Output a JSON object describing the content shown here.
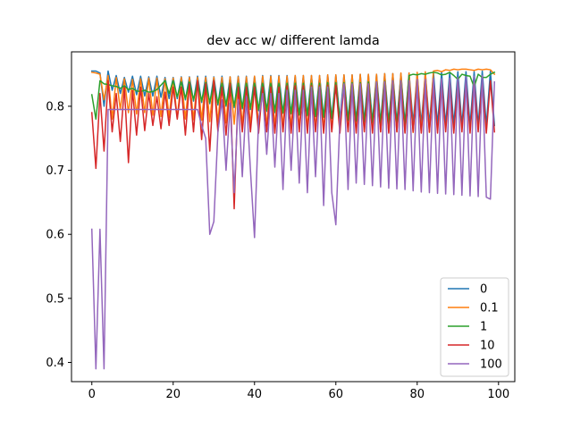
{
  "chart_data": {
    "type": "line",
    "title": "dev acc w/ different lamda",
    "xlabel": "",
    "ylabel": "",
    "xlim": [
      -5,
      104
    ],
    "ylim": [
      0.37,
      0.885
    ],
    "xticks": [
      0,
      20,
      40,
      60,
      80,
      100
    ],
    "yticks": [
      0.4,
      0.5,
      0.6,
      0.7,
      0.8
    ],
    "grid": false,
    "legend_position": "lower-right",
    "series": [
      {
        "name": "0",
        "color": "#1f77b4",
        "x": [
          0,
          1,
          2,
          3,
          4,
          5,
          6,
          7,
          8,
          9,
          10,
          11,
          12,
          13,
          14,
          15,
          16,
          17,
          18,
          19,
          20,
          21,
          22,
          23,
          24,
          25,
          26,
          27,
          28,
          29,
          30,
          31,
          32,
          33,
          34,
          35,
          36,
          37,
          38,
          39,
          40,
          41,
          42,
          43,
          44,
          45,
          46,
          47,
          48,
          49,
          50,
          51,
          52,
          53,
          54,
          55,
          56,
          57,
          58,
          59,
          60,
          61,
          62,
          63,
          64,
          65,
          66,
          67,
          68,
          69,
          70,
          71,
          72,
          73,
          74,
          75,
          76,
          77,
          78,
          79,
          80,
          81,
          82,
          83,
          84,
          85,
          86,
          87,
          88,
          89,
          90,
          91,
          92,
          93,
          94,
          95,
          96,
          97,
          98,
          99
        ],
        "values": [
          0.855,
          0.855,
          0.852,
          0.8,
          0.855,
          0.825,
          0.848,
          0.82,
          0.845,
          0.822,
          0.847,
          0.818,
          0.847,
          0.816,
          0.846,
          0.816,
          0.847,
          0.814,
          0.845,
          0.812,
          0.845,
          0.812,
          0.846,
          0.81,
          0.846,
          0.808,
          0.847,
          0.806,
          0.847,
          0.804,
          0.846,
          0.802,
          0.847,
          0.8,
          0.846,
          0.798,
          0.847,
          0.796,
          0.847,
          0.795,
          0.847,
          0.793,
          0.848,
          0.792,
          0.848,
          0.79,
          0.848,
          0.789,
          0.848,
          0.788,
          0.848,
          0.786,
          0.848,
          0.785,
          0.848,
          0.784,
          0.848,
          0.783,
          0.849,
          0.781,
          0.849,
          0.78,
          0.849,
          0.779,
          0.849,
          0.778,
          0.85,
          0.777,
          0.85,
          0.776,
          0.85,
          0.775,
          0.851,
          0.775,
          0.851,
          0.774,
          0.851,
          0.773,
          0.852,
          0.773,
          0.852,
          0.772,
          0.852,
          0.772,
          0.853,
          0.771,
          0.853,
          0.771,
          0.853,
          0.771,
          0.854,
          0.77,
          0.854,
          0.77,
          0.854,
          0.77,
          0.855,
          0.77,
          0.855,
          0.77
        ]
      },
      {
        "name": "0.1",
        "color": "#ff7f0e",
        "x": [
          0,
          1,
          2,
          3,
          4,
          5,
          6,
          7,
          8,
          9,
          10,
          11,
          12,
          13,
          14,
          15,
          16,
          17,
          18,
          19,
          20,
          21,
          22,
          23,
          24,
          25,
          26,
          27,
          28,
          29,
          30,
          31,
          32,
          33,
          34,
          35,
          36,
          37,
          38,
          39,
          40,
          41,
          42,
          43,
          44,
          45,
          46,
          47,
          48,
          49,
          50,
          51,
          52,
          53,
          54,
          55,
          56,
          57,
          58,
          59,
          60,
          61,
          62,
          63,
          64,
          65,
          66,
          67,
          68,
          69,
          70,
          71,
          72,
          73,
          74,
          75,
          76,
          77,
          78,
          79,
          80,
          81,
          82,
          83,
          84,
          85,
          86,
          87,
          88,
          89,
          90,
          91,
          92,
          93,
          94,
          95,
          96,
          97,
          98,
          99
        ],
        "values": [
          0.853,
          0.852,
          0.85,
          0.81,
          0.848,
          0.78,
          0.845,
          0.795,
          0.843,
          0.79,
          0.842,
          0.788,
          0.843,
          0.79,
          0.844,
          0.786,
          0.844,
          0.784,
          0.843,
          0.782,
          0.844,
          0.781,
          0.845,
          0.78,
          0.845,
          0.779,
          0.845,
          0.778,
          0.845,
          0.776,
          0.845,
          0.775,
          0.845,
          0.774,
          0.846,
          0.772,
          0.846,
          0.771,
          0.846,
          0.77,
          0.847,
          0.769,
          0.847,
          0.768,
          0.847,
          0.768,
          0.847,
          0.767,
          0.847,
          0.766,
          0.848,
          0.765,
          0.848,
          0.765,
          0.848,
          0.764,
          0.848,
          0.763,
          0.849,
          0.763,
          0.849,
          0.762,
          0.849,
          0.762,
          0.849,
          0.761,
          0.85,
          0.761,
          0.85,
          0.761,
          0.85,
          0.76,
          0.851,
          0.76,
          0.851,
          0.76,
          0.852,
          0.759,
          0.852,
          0.759,
          0.853,
          0.759,
          0.854,
          0.759,
          0.855,
          0.856,
          0.854,
          0.857,
          0.856,
          0.858,
          0.857,
          0.858,
          0.858,
          0.857,
          0.856,
          0.858,
          0.857,
          0.858,
          0.857,
          0.85
        ]
      },
      {
        "name": "1",
        "color": "#2ca02c",
        "x": [
          0,
          1,
          2,
          3,
          4,
          5,
          6,
          7,
          8,
          9,
          10,
          11,
          12,
          13,
          14,
          15,
          16,
          17,
          18,
          19,
          20,
          21,
          22,
          23,
          24,
          25,
          26,
          27,
          28,
          29,
          30,
          31,
          32,
          33,
          34,
          35,
          36,
          37,
          38,
          39,
          40,
          41,
          42,
          43,
          44,
          45,
          46,
          47,
          48,
          49,
          50,
          51,
          52,
          53,
          54,
          55,
          56,
          57,
          58,
          59,
          60,
          61,
          62,
          63,
          64,
          65,
          66,
          67,
          68,
          69,
          70,
          71,
          72,
          73,
          74,
          75,
          76,
          77,
          78,
          79,
          80,
          81,
          82,
          83,
          84,
          85,
          86,
          87,
          88,
          89,
          90,
          91,
          92,
          93,
          94,
          95,
          96,
          97,
          98,
          99
        ],
        "values": [
          0.818,
          0.78,
          0.84,
          0.835,
          0.834,
          0.832,
          0.831,
          0.828,
          0.832,
          0.826,
          0.828,
          0.824,
          0.823,
          0.825,
          0.822,
          0.823,
          0.826,
          0.833,
          0.84,
          0.82,
          0.84,
          0.815,
          0.838,
          0.812,
          0.838,
          0.81,
          0.837,
          0.808,
          0.837,
          0.806,
          0.836,
          0.804,
          0.836,
          0.802,
          0.836,
          0.8,
          0.836,
          0.798,
          0.836,
          0.797,
          0.836,
          0.795,
          0.836,
          0.794,
          0.836,
          0.792,
          0.836,
          0.79,
          0.836,
          0.789,
          0.836,
          0.787,
          0.836,
          0.786,
          0.836,
          0.784,
          0.836,
          0.783,
          0.837,
          0.781,
          0.837,
          0.78,
          0.837,
          0.778,
          0.837,
          0.777,
          0.837,
          0.776,
          0.838,
          0.775,
          0.838,
          0.774,
          0.839,
          0.773,
          0.839,
          0.772,
          0.84,
          0.771,
          0.848,
          0.85,
          0.849,
          0.851,
          0.85,
          0.852,
          0.853,
          0.852,
          0.849,
          0.85,
          0.853,
          0.848,
          0.842,
          0.85,
          0.848,
          0.847,
          0.83,
          0.85,
          0.845,
          0.845,
          0.85,
          0.853
        ]
      },
      {
        "name": "10",
        "color": "#d62728",
        "x": [
          0,
          1,
          2,
          3,
          4,
          5,
          6,
          7,
          8,
          9,
          10,
          11,
          12,
          13,
          14,
          15,
          16,
          17,
          18,
          19,
          20,
          21,
          22,
          23,
          24,
          25,
          26,
          27,
          28,
          29,
          30,
          31,
          32,
          33,
          34,
          35,
          36,
          37,
          38,
          39,
          40,
          41,
          42,
          43,
          44,
          45,
          46,
          47,
          48,
          49,
          50,
          51,
          52,
          53,
          54,
          55,
          56,
          57,
          58,
          59,
          60,
          61,
          62,
          63,
          64,
          65,
          66,
          67,
          68,
          69,
          70,
          71,
          72,
          73,
          74,
          75,
          76,
          77,
          78,
          79,
          80,
          81,
          82,
          83,
          84,
          85,
          86,
          87,
          88,
          89,
          90,
          91,
          92,
          93,
          94,
          95,
          96,
          97,
          98,
          99
        ],
        "values": [
          0.79,
          0.703,
          0.82,
          0.73,
          0.84,
          0.76,
          0.82,
          0.745,
          0.83,
          0.712,
          0.825,
          0.755,
          0.83,
          0.762,
          0.82,
          0.77,
          0.815,
          0.765,
          0.822,
          0.77,
          0.83,
          0.78,
          0.83,
          0.755,
          0.835,
          0.76,
          0.84,
          0.748,
          0.835,
          0.73,
          0.84,
          0.76,
          0.83,
          0.755,
          0.835,
          0.64,
          0.83,
          0.76,
          0.83,
          0.76,
          0.83,
          0.758,
          0.83,
          0.76,
          0.83,
          0.758,
          0.83,
          0.76,
          0.832,
          0.758,
          0.832,
          0.76,
          0.832,
          0.758,
          0.832,
          0.76,
          0.832,
          0.758,
          0.833,
          0.76,
          0.833,
          0.758,
          0.834,
          0.76,
          0.834,
          0.758,
          0.835,
          0.76,
          0.835,
          0.758,
          0.836,
          0.76,
          0.836,
          0.758,
          0.837,
          0.76,
          0.837,
          0.758,
          0.838,
          0.76,
          0.838,
          0.758,
          0.839,
          0.76,
          0.84,
          0.758,
          0.84,
          0.76,
          0.84,
          0.758,
          0.84,
          0.76,
          0.84,
          0.758,
          0.84,
          0.76,
          0.84,
          0.758,
          0.84,
          0.76
        ]
      },
      {
        "name": "100",
        "color": "#9467bd",
        "x": [
          0,
          1,
          2,
          3,
          4,
          5,
          6,
          7,
          8,
          9,
          10,
          11,
          12,
          13,
          14,
          15,
          16,
          17,
          18,
          19,
          20,
          21,
          22,
          23,
          24,
          25,
          26,
          27,
          28,
          29,
          30,
          31,
          32,
          33,
          34,
          35,
          36,
          37,
          38,
          39,
          40,
          41,
          42,
          43,
          44,
          45,
          46,
          47,
          48,
          49,
          50,
          51,
          52,
          53,
          54,
          55,
          56,
          57,
          58,
          59,
          60,
          61,
          62,
          63,
          64,
          65,
          66,
          67,
          68,
          69,
          70,
          71,
          72,
          73,
          74,
          75,
          76,
          77,
          78,
          79,
          80,
          81,
          82,
          83,
          84,
          85,
          86,
          87,
          88,
          89,
          90,
          91,
          92,
          93,
          94,
          95,
          96,
          97,
          98,
          99
        ],
        "values": [
          0.608,
          0.39,
          0.608,
          0.39,
          0.795,
          0.795,
          0.795,
          0.795,
          0.795,
          0.795,
          0.795,
          0.795,
          0.795,
          0.795,
          0.795,
          0.795,
          0.795,
          0.795,
          0.795,
          0.795,
          0.795,
          0.795,
          0.795,
          0.795,
          0.795,
          0.795,
          0.795,
          0.77,
          0.75,
          0.6,
          0.62,
          0.76,
          0.81,
          0.7,
          0.805,
          0.665,
          0.81,
          0.69,
          0.815,
          0.7,
          0.595,
          0.78,
          0.82,
          0.725,
          0.82,
          0.705,
          0.82,
          0.67,
          0.825,
          0.7,
          0.825,
          0.68,
          0.825,
          0.665,
          0.83,
          0.69,
          0.83,
          0.645,
          0.83,
          0.665,
          0.615,
          0.78,
          0.835,
          0.67,
          0.835,
          0.68,
          0.835,
          0.678,
          0.835,
          0.676,
          0.838,
          0.674,
          0.838,
          0.672,
          0.84,
          0.671,
          0.84,
          0.67,
          0.84,
          0.668,
          0.842,
          0.666,
          0.842,
          0.665,
          0.843,
          0.664,
          0.843,
          0.663,
          0.844,
          0.662,
          0.845,
          0.661,
          0.846,
          0.66,
          0.847,
          0.659,
          0.848,
          0.658,
          0.655,
          0.838
        ]
      }
    ]
  }
}
